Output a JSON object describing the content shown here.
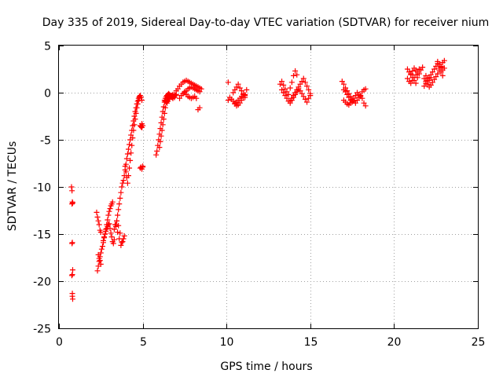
{
  "chart_data": {
    "type": "scatter",
    "title": "Day 335 of 2019, Sidereal Day-to-day VTEC variation (SDTVAR) for receiver nium",
    "xlabel": "GPS time / hours",
    "ylabel": "SDTVAR / TECUs",
    "xlim": [
      0,
      25
    ],
    "ylim": [
      -25,
      5
    ],
    "xticks": [
      0,
      5,
      10,
      15,
      20,
      25
    ],
    "xtick_labels": [
      "0",
      "5",
      "10",
      "15",
      "20",
      "25"
    ],
    "yticks": [
      5,
      0,
      -5,
      -10,
      -15,
      -20,
      -25
    ],
    "ytick_labels": [
      "5",
      "0",
      "-5",
      "-10",
      "-15",
      "-20",
      "-25"
    ],
    "grid": true,
    "legend": "none",
    "marker": "plus",
    "series": [
      {
        "name": "SDTVAR",
        "color": "#ff0000",
        "x": [
          0.75,
          0.78,
          0.8,
          0.82,
          0.8,
          0.78,
          0.82,
          0.8,
          0.77,
          0.8,
          0.8,
          0.82,
          0.78,
          2.25,
          2.3,
          2.35,
          2.4,
          2.45,
          2.5,
          2.35,
          2.4,
          2.45,
          2.5,
          2.3,
          2.35,
          2.4,
          2.45,
          2.5,
          2.55,
          2.6,
          2.65,
          2.7,
          2.75,
          2.8,
          2.85,
          2.9,
          2.95,
          3.0,
          3.05,
          3.1,
          3.15,
          3.2,
          2.65,
          2.7,
          2.75,
          2.8,
          2.85,
          2.9,
          2.95,
          3.0,
          3.05,
          3.1,
          3.15,
          3.2,
          3.25,
          3.3,
          3.4,
          3.45,
          3.5,
          3.55,
          3.6,
          3.65,
          3.7,
          3.75,
          3.8,
          3.85,
          3.9,
          3.95,
          4.0,
          4.05,
          4.1,
          4.15,
          4.2,
          4.25,
          4.3,
          4.35,
          4.4,
          4.45,
          4.5,
          4.55,
          4.6,
          4.65,
          4.7,
          4.75,
          4.8,
          4.85,
          4.9,
          4.95,
          3.3,
          3.4,
          3.5,
          3.6,
          3.7,
          3.8,
          3.9,
          3.35,
          3.45,
          3.55,
          3.65,
          3.75,
          3.85,
          3.95,
          4.0,
          4.05,
          4.1,
          4.15,
          4.2,
          4.25,
          4.3,
          4.35,
          4.4,
          4.45,
          4.5,
          4.55,
          4.6,
          4.65,
          4.7,
          4.75,
          4.8,
          4.85,
          4.9,
          4.95,
          5.0,
          4.85,
          4.9,
          4.95,
          5.0,
          4.9,
          4.95,
          5.0,
          5.8,
          5.85,
          5.9,
          5.95,
          6.0,
          6.05,
          6.1,
          6.15,
          6.2,
          6.25,
          6.3,
          6.35,
          6.4,
          6.45,
          6.5,
          6.55,
          6.6,
          6.65,
          6.7,
          6.75,
          6.8,
          6.85,
          6.9,
          6.95,
          7.0,
          6.0,
          6.05,
          6.1,
          6.15,
          6.2,
          6.25,
          6.3,
          6.35,
          6.4,
          6.45,
          6.5,
          6.55,
          6.6,
          6.3,
          6.35,
          6.4,
          6.45,
          6.5,
          6.55,
          6.6,
          6.65,
          6.7,
          6.75,
          6.8,
          6.85,
          6.9,
          7.0,
          7.1,
          7.2,
          7.3,
          7.4,
          7.5,
          7.6,
          7.7,
          7.8,
          7.9,
          8.0,
          8.1,
          8.2,
          8.3,
          8.4,
          8.5,
          7.5,
          7.6,
          7.7,
          7.8,
          7.9,
          8.0,
          8.1,
          8.2,
          8.3,
          8.4,
          7.2,
          7.3,
          7.4,
          7.5,
          7.6,
          7.7,
          7.8,
          7.9,
          8.0,
          8.1,
          8.2,
          8.3,
          8.4,
          10.1,
          10.1,
          10.2,
          10.3,
          10.4,
          10.5,
          10.6,
          10.7,
          10.8,
          10.9,
          11.0,
          11.1,
          10.5,
          10.6,
          10.7,
          10.8,
          10.9,
          11.0,
          11.1,
          11.2,
          10.4,
          10.5,
          10.6,
          10.7,
          10.8,
          10.9,
          11.0,
          11.1,
          13.2,
          13.3,
          13.4,
          13.5,
          13.6,
          13.7,
          13.8,
          13.9,
          14.0,
          14.1,
          14.2,
          13.8,
          13.9,
          14.0,
          14.1,
          14.2,
          14.3,
          14.4,
          14.5,
          14.6,
          14.7,
          14.8,
          14.9,
          15.0,
          13.3,
          13.4,
          13.5,
          13.6,
          13.7,
          13.8,
          13.9,
          14.0,
          14.1,
          14.2,
          14.3,
          14.4,
          14.5,
          14.6,
          14.7,
          14.8,
          14.9,
          15.0,
          16.9,
          17.0,
          17.1,
          17.2,
          17.3,
          17.4,
          17.5,
          17.6,
          17.7,
          17.8,
          17.9,
          18.0,
          18.1,
          18.2,
          18.3,
          17.0,
          17.1,
          17.2,
          17.3,
          17.4,
          17.5,
          17.6,
          17.7,
          17.8,
          17.9,
          18.0,
          18.1,
          17.0,
          17.1,
          17.2,
          17.3,
          17.4,
          17.5,
          18.2,
          18.3,
          20.8,
          20.9,
          21.0,
          21.1,
          21.2,
          21.3,
          21.4,
          21.5,
          21.6,
          21.7,
          21.8,
          21.9,
          22.0,
          22.1,
          22.2,
          22.3,
          22.4,
          22.5,
          22.6,
          22.7,
          22.8,
          22.9,
          23.0,
          20.8,
          20.9,
          21.0,
          21.1,
          21.2,
          21.3,
          21.4,
          21.5,
          21.8,
          21.9,
          22.0,
          22.1,
          22.2,
          22.3,
          22.4,
          22.5,
          22.6,
          22.7,
          22.8,
          22.9,
          23.0,
          21.0,
          21.1,
          21.2,
          21.3,
          21.9,
          22.0,
          22.1,
          22.2,
          22.6,
          22.7,
          22.8,
          22.9
        ],
        "y": [
          -10.0,
          -10.4,
          -11.6,
          -11.7,
          -15.9,
          -16.0,
          -18.8,
          -19.3,
          -19.4,
          -21.3,
          -21.6,
          -21.9,
          -11.8,
          -12.7,
          -13.2,
          -13.6,
          -14.0,
          -14.6,
          -14.8,
          -17.2,
          -17.6,
          -17.8,
          -18.2,
          -18.9,
          -18.4,
          -17.9,
          -17.4,
          -17.0,
          -16.6,
          -16.3,
          -15.9,
          -15.4,
          -15.0,
          -14.5,
          -14.0,
          -13.5,
          -13.0,
          -12.6,
          -12.3,
          -12.0,
          -11.8,
          -11.6,
          -15.7,
          -15.3,
          -15.0,
          -14.7,
          -14.4,
          -14.2,
          -14.0,
          -13.9,
          -14.4,
          -14.9,
          -15.3,
          -15.8,
          -16.0,
          -15.6,
          -14.0,
          -13.6,
          -13.0,
          -12.4,
          -11.8,
          -11.2,
          -10.6,
          -10.0,
          -9.6,
          -9.3,
          -8.8,
          -8.2,
          -7.6,
          -7.0,
          -6.5,
          -6.0,
          -5.5,
          -5.0,
          -4.5,
          -4.0,
          -3.5,
          -3.0,
          -2.5,
          -2.0,
          -1.6,
          -1.2,
          -0.9,
          -0.6,
          -0.4,
          -0.3,
          -0.5,
          -0.8,
          -14.5,
          -14.2,
          -14.8,
          -15.5,
          -16.2,
          -15.8,
          -15.2,
          -14.0,
          -13.6,
          -14.1,
          -14.9,
          -15.9,
          -15.5,
          -7.8,
          -8.4,
          -9.0,
          -9.6,
          -8.8,
          -8.0,
          -7.2,
          -6.4,
          -5.6,
          -4.8,
          -4.0,
          -3.4,
          -2.8,
          -2.2,
          -1.6,
          -1.2,
          -0.8,
          -0.5,
          -3.5,
          -3.6,
          -3.3,
          -7.8,
          -8.0,
          -7.9,
          -3.7,
          -3.5,
          -3.6,
          -8.1,
          -7.9,
          -6.6,
          -6.2,
          -5.6,
          -5.0,
          -4.4,
          -3.8,
          -3.2,
          -2.6,
          -2.0,
          -1.5,
          -1.0,
          -0.6,
          -0.4,
          -0.3,
          -0.2,
          -0.1,
          -0.2,
          -0.3,
          -0.4,
          -0.3,
          -0.2,
          -0.4,
          -0.5,
          -0.3,
          -0.2,
          -5.8,
          -5.2,
          -4.6,
          -4.0,
          -3.4,
          -2.8,
          -2.2,
          -1.6,
          -1.0,
          -0.6,
          -0.4,
          -0.5,
          -0.7,
          -0.8,
          -0.9,
          -1.0,
          -1.1,
          -0.9,
          -0.7,
          -0.6,
          -0.4,
          -0.3,
          -0.5,
          -0.6,
          -0.4,
          -0.2,
          0.2,
          0.4,
          0.7,
          0.9,
          1.1,
          1.2,
          1.3,
          1.2,
          1.1,
          1.0,
          0.9,
          0.8,
          0.7,
          0.6,
          0.5,
          0.4,
          0.0,
          0.2,
          0.4,
          0.5,
          0.6,
          0.5,
          0.4,
          0.3,
          0.2,
          0.1,
          -0.6,
          -0.3,
          -0.1,
          0.1,
          -0.2,
          -0.4,
          -0.5,
          -0.6,
          -0.5,
          -0.4,
          -0.6,
          -1.8,
          -1.6,
          1.1,
          -0.8,
          -0.5,
          -0.7,
          -0.9,
          -1.1,
          -1.0,
          -0.8,
          -0.6,
          -0.4,
          -0.2,
          -0.5,
          -1.2,
          -1.4,
          -1.3,
          -1.1,
          -0.8,
          -0.5,
          -0.2,
          0.3,
          0.0,
          0.3,
          0.6,
          0.9,
          0.5,
          0.2,
          -0.1,
          -0.3,
          0.9,
          1.2,
          0.8,
          0.4,
          0.1,
          -0.2,
          0.5,
          1.1,
          1.8,
          2.3,
          1.9,
          -0.9,
          -0.6,
          -0.3,
          0.0,
          0.3,
          0.6,
          0.9,
          1.2,
          1.5,
          1.1,
          0.7,
          0.3,
          -0.1,
          0.3,
          0.0,
          -0.3,
          -0.6,
          -0.9,
          -1.1,
          -0.8,
          -0.5,
          -0.2,
          0.1,
          0.4,
          0.2,
          -0.1,
          -0.4,
          -0.7,
          -1.0,
          -0.6,
          -0.3,
          1.2,
          0.9,
          0.5,
          0.2,
          -0.1,
          -0.4,
          -0.7,
          -0.9,
          -1.1,
          -0.8,
          -0.5,
          -0.3,
          0.1,
          0.3,
          0.4,
          -0.8,
          -1.0,
          -1.2,
          -1.3,
          -1.1,
          -0.9,
          -0.6,
          -0.3,
          0.0,
          -0.2,
          -0.4,
          -0.6,
          0.3,
          0.1,
          -0.2,
          -0.5,
          -0.8,
          -1.0,
          -1.1,
          -1.4,
          2.5,
          2.2,
          1.9,
          1.6,
          1.3,
          1.0,
          1.6,
          2.0,
          2.4,
          2.7,
          1.5,
          1.2,
          0.9,
          0.6,
          0.8,
          1.1,
          1.4,
          1.7,
          2.0,
          2.4,
          2.8,
          3.2,
          3.4,
          1.5,
          1.2,
          1.0,
          1.3,
          1.6,
          1.9,
          2.2,
          2.5,
          0.7,
          1.0,
          1.3,
          1.6,
          1.9,
          2.2,
          2.5,
          2.8,
          3.1,
          2.6,
          2.2,
          1.8,
          2.6,
          2.0,
          2.3,
          2.6,
          2.4,
          1.8,
          1.5,
          1.3,
          1.6,
          3.3,
          3.0,
          2.7,
          2.4
        ]
      }
    ]
  }
}
